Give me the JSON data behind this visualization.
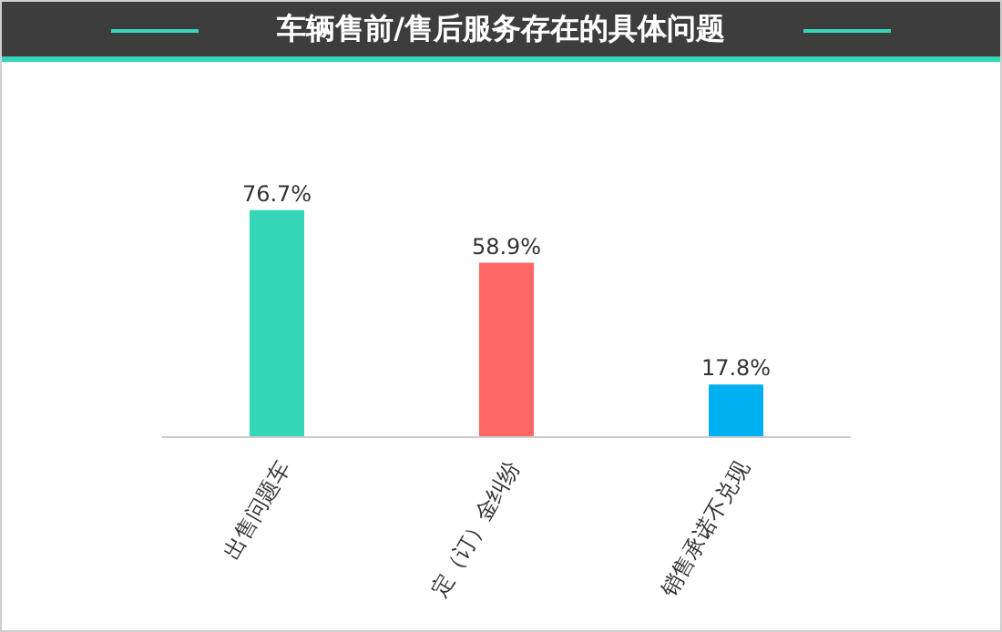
{
  "chart_data": {
    "type": "bar",
    "title": "车辆售前/售后服务存在的具体问题",
    "categories": [
      "出售问题车",
      "定（订）金纠纷",
      "销售承诺不兑现"
    ],
    "values": [
      76.7,
      58.9,
      17.8
    ],
    "colors": [
      "#36d6b8",
      "#ff6666",
      "#00b0f0"
    ],
    "value_labels": [
      "76.7%",
      "58.9%",
      "17.8%"
    ]
  }
}
